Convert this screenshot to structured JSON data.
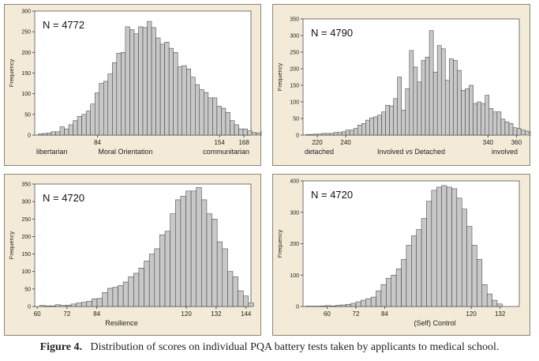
{
  "figure": {
    "label": "Figure 4.",
    "caption": "Distribution of scores on individual PQA battery tests taken by applicants to medical school."
  },
  "colors": {
    "panel_bg": "#f3ead7",
    "bar_fill": "#c8c8c8",
    "bar_stroke": "#333333",
    "plot_bg": "#ffffff"
  },
  "chart_data": [
    {
      "type": "bar",
      "n_label": "N = 4772",
      "ylabel": "Frequency",
      "xlabel": "Moral Orientation",
      "left_label": "libertarian",
      "right_label": "communitarian",
      "ylim": [
        0,
        300
      ],
      "yticks": [
        0,
        50,
        100,
        150,
        200,
        250,
        300
      ],
      "xlim": [
        48,
        172
      ],
      "xticks": [
        84,
        154,
        168
      ],
      "bin_start": 50,
      "bin_width": 2.5,
      "values": [
        3,
        4,
        5,
        8,
        8,
        20,
        15,
        25,
        35,
        45,
        50,
        58,
        75,
        102,
        125,
        130,
        148,
        175,
        198,
        200,
        262,
        255,
        245,
        262,
        260,
        275,
        260,
        235,
        220,
        225,
        210,
        200,
        165,
        168,
        160,
        140,
        122,
        110,
        103,
        90,
        90,
        70,
        65,
        55,
        35,
        25,
        15,
        15,
        10,
        6,
        5,
        8,
        4,
        3,
        2,
        2,
        1
      ]
    },
    {
      "type": "bar",
      "n_label": "N = 4790",
      "ylabel": "Frequency",
      "xlabel_pre": "Involved ",
      "xlabel_vs": "vs",
      "xlabel_post": " Detached",
      "left_label": "detached",
      "right_label": "involved",
      "ylim": [
        0,
        350
      ],
      "yticks": [
        0,
        50,
        100,
        150,
        200,
        250,
        300,
        350
      ],
      "xlim": [
        210,
        362
      ],
      "xticks": [
        220,
        240,
        340,
        360
      ],
      "bin_start": 212,
      "bin_width": 2.8,
      "values": [
        2,
        2,
        3,
        3,
        5,
        5,
        5,
        8,
        8,
        10,
        15,
        15,
        20,
        30,
        35,
        45,
        52,
        55,
        60,
        70,
        90,
        88,
        110,
        175,
        75,
        140,
        255,
        205,
        160,
        225,
        235,
        315,
        190,
        270,
        260,
        165,
        230,
        225,
        195,
        135,
        140,
        150,
        95,
        100,
        95,
        120,
        80,
        70,
        70,
        48,
        40,
        35,
        22,
        20,
        15,
        12,
        8,
        7,
        5,
        4,
        3,
        3,
        2,
        2,
        1
      ]
    },
    {
      "type": "bar",
      "n_label": "N = 4720",
      "ylabel": "Frequency",
      "xlabel": "Resilience",
      "ylim": [
        0,
        350
      ],
      "yticks": [
        0,
        50,
        100,
        150,
        200,
        250,
        300,
        350
      ],
      "xlim": [
        59,
        146
      ],
      "xticks": [
        60,
        72,
        84,
        120,
        132,
        144
      ],
      "bin_start": 61,
      "bin_width": 2.1,
      "values": [
        3,
        2,
        2,
        5,
        3,
        4,
        7,
        10,
        12,
        15,
        22,
        23,
        40,
        52,
        55,
        60,
        70,
        85,
        95,
        110,
        130,
        150,
        165,
        205,
        215,
        265,
        305,
        315,
        330,
        330,
        340,
        305,
        265,
        250,
        185,
        165,
        100,
        85,
        45,
        30,
        10
      ]
    },
    {
      "type": "bar",
      "n_label": "N = 4720",
      "ylabel": "Frequency",
      "xlabel": "(Self) Control",
      "ylim": [
        0,
        400
      ],
      "yticks": [
        0,
        100,
        200,
        300,
        400
      ],
      "xlim": [
        50,
        140
      ],
      "xticks": [
        60,
        72,
        84,
        120,
        132
      ],
      "bin_start": 51,
      "bin_width": 2.1,
      "values": [
        1,
        1,
        1,
        2,
        3,
        2,
        4,
        5,
        7,
        10,
        15,
        20,
        25,
        30,
        50,
        70,
        90,
        100,
        120,
        150,
        195,
        225,
        245,
        280,
        335,
        370,
        380,
        385,
        380,
        375,
        345,
        310,
        255,
        195,
        150,
        70,
        40,
        20,
        8
      ]
    }
  ]
}
